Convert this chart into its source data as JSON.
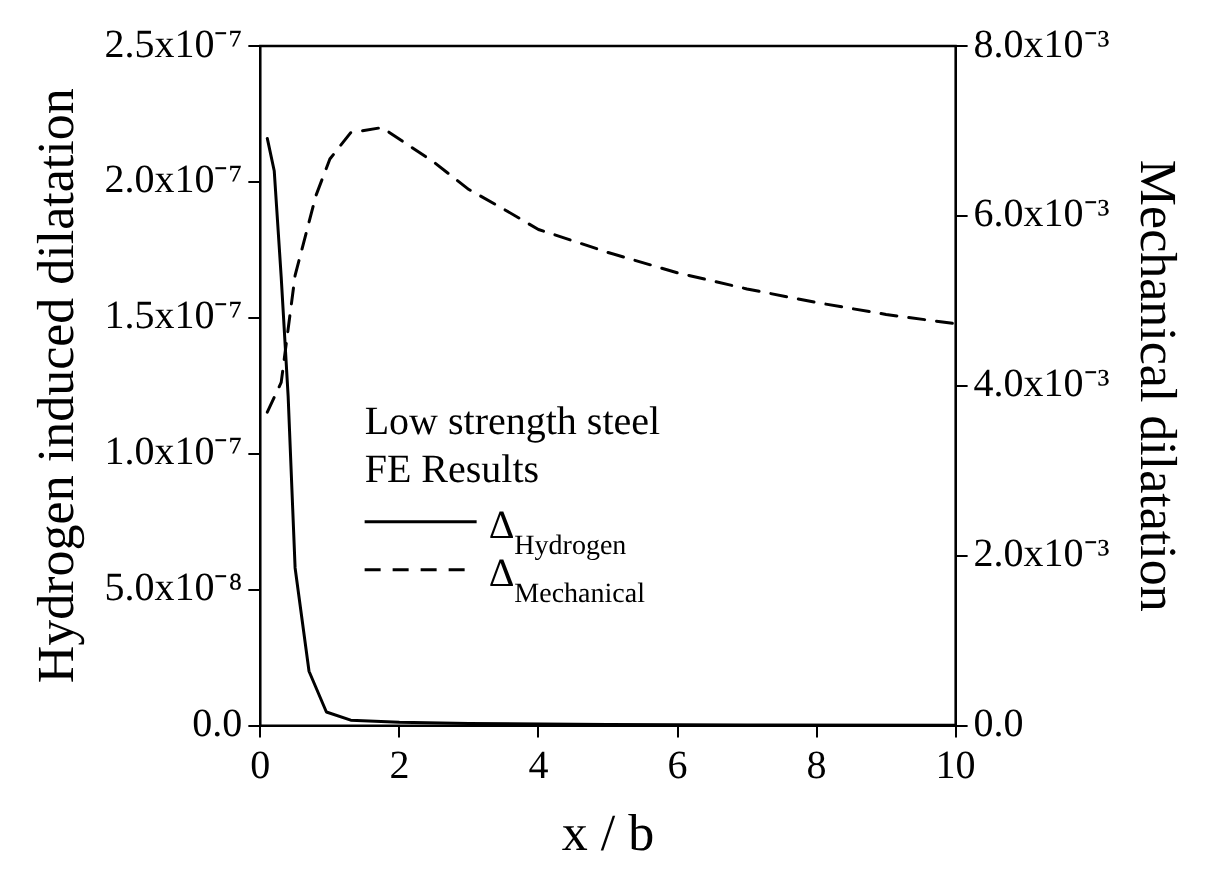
{
  "chart_data": {
    "type": "line",
    "xlabel": "x / b",
    "ylabel": "Hydrogen induced dilatation",
    "y2label": "Mechanical dilatation",
    "legend_title": "Low strength steel FE Results",
    "legend": "left",
    "grid": false,
    "marker": "none",
    "xlim": [
      0,
      10
    ],
    "xticks": [
      0,
      2,
      4,
      6,
      8,
      10
    ],
    "ylim": [
      0,
      2.5e-07
    ],
    "yticks": [
      {
        "value": 0,
        "label": "0.0"
      },
      {
        "value": 5e-08,
        "label": "5.0x10⁻⁸"
      },
      {
        "value": 1e-07,
        "label": "1.0x10⁻⁷"
      },
      {
        "value": 1.5e-07,
        "label": "1.5x10⁻⁷"
      },
      {
        "value": 2e-07,
        "label": "2.0x10⁻⁷"
      },
      {
        "value": 2.5e-07,
        "label": "2.5x10⁻⁷"
      }
    ],
    "y2lim": [
      0,
      0.008
    ],
    "y2ticks": [
      {
        "value": 0,
        "label": "0.0"
      },
      {
        "value": 0.002,
        "label": "2.0x10⁻³"
      },
      {
        "value": 0.004,
        "label": "4.0x10⁻³"
      },
      {
        "value": 0.006,
        "label": "6.0x10⁻³"
      },
      {
        "value": 0.008,
        "label": "8.0x10⁻³"
      }
    ],
    "series": [
      {
        "name": "Δ$_{Hydrogen}$",
        "color": "#000000",
        "line_style": "solid",
        "x": [
          0.1,
          0.2,
          0.3,
          0.4,
          0.5,
          0.7,
          0.95,
          1.3,
          2,
          3,
          5,
          7,
          10
        ],
        "values": [
          2.16e-07,
          2.04e-07,
          1.65e-07,
          1.21e-07,
          5.8e-08,
          2e-08,
          5e-09,
          2e-09,
          1.2e-09,
          8e-10,
          4e-10,
          2e-10,
          1e-10
        ]
      },
      {
        "name": "Δ$_{Mechanical}$",
        "color": "#000000",
        "line_style": "dashed",
        "axis": "y2",
        "x": [
          0.1,
          0.3,
          0.5,
          0.8,
          1,
          1.3,
          1.75,
          2.5,
          3,
          3.5,
          4,
          5,
          6,
          7,
          8,
          9,
          10
        ],
        "values": [
          0.00369,
          0.00404,
          0.0053,
          0.00624,
          0.00667,
          0.00698,
          0.00704,
          0.00663,
          0.00631,
          0.00608,
          0.00584,
          0.00557,
          0.00533,
          0.00514,
          0.00498,
          0.00484,
          0.00473
        ]
      }
    ]
  }
}
